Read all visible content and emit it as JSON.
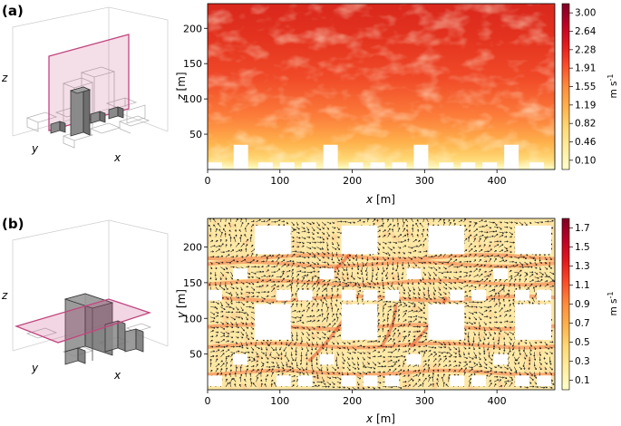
{
  "colors": {
    "cmap": [
      "#ffffcc",
      "#ffeda0",
      "#fed976",
      "#feb24c",
      "#fd8d3c",
      "#fc4e2a",
      "#e31a1c",
      "#bd0026",
      "#800026"
    ],
    "plane": "#c2467f",
    "building_fill": "#7f7f7f",
    "building_edge": "#444444"
  },
  "chart_data": [
    {
      "panel_label": "(a)",
      "type": "heatmap",
      "xlabel_var": "x",
      "xlabel_unit": "[m]",
      "ylabel_var": "z",
      "ylabel_unit": "[m]",
      "xlim": [
        0,
        480
      ],
      "ylim": [
        0,
        235
      ],
      "xticks": [
        0,
        100,
        200,
        300,
        400
      ],
      "yticks": [
        50,
        100,
        150,
        200
      ],
      "colorbar": {
        "label": "m s",
        "label_exp": "-1",
        "ticks": [
          "0.10",
          "0.46",
          "0.82",
          "1.19",
          "1.55",
          "1.91",
          "2.28",
          "2.64",
          "3.00"
        ],
        "range": [
          0.1,
          3.0
        ]
      },
      "buildings": [
        {
          "x": [
            0,
            20
          ],
          "h": 10
        },
        {
          "x": [
            36,
            56
          ],
          "h": 35
        },
        {
          "x": [
            70,
            90
          ],
          "h": 10
        },
        {
          "x": [
            100,
            120
          ],
          "h": 10
        },
        {
          "x": [
            130,
            150
          ],
          "h": 10
        },
        {
          "x": [
            160,
            180
          ],
          "h": 35
        },
        {
          "x": [
            195,
            215
          ],
          "h": 10
        },
        {
          "x": [
            225,
            245
          ],
          "h": 10
        },
        {
          "x": [
            255,
            275
          ],
          "h": 10
        },
        {
          "x": [
            285,
            305
          ],
          "h": 35
        },
        {
          "x": [
            320,
            340
          ],
          "h": 10
        },
        {
          "x": [
            350,
            370
          ],
          "h": 10
        },
        {
          "x": [
            380,
            400
          ],
          "h": 10
        },
        {
          "x": [
            410,
            430
          ],
          "h": 35
        },
        {
          "x": [
            445,
            465
          ],
          "h": 10
        }
      ]
    },
    {
      "panel_label": "(b)",
      "type": "heatmap",
      "xlabel_var": "x",
      "xlabel_unit": "[m]",
      "ylabel_var": "y",
      "ylabel_unit": "[m]",
      "xlim": [
        0,
        480
      ],
      "ylim": [
        0,
        240
      ],
      "xticks": [
        0,
        100,
        200,
        300,
        400
      ],
      "yticks": [
        50,
        100,
        150,
        200
      ],
      "colorbar": {
        "label": "m s",
        "label_exp": "-1",
        "ticks": [
          "0.1",
          "0.3",
          "0.5",
          "0.7",
          "0.9",
          "1.1",
          "1.3",
          "1.5",
          "1.7"
        ],
        "range": [
          0.1,
          1.7
        ]
      },
      "buildings": [
        {
          "x": [
            65,
            115
          ],
          "y": [
            190,
            230
          ]
        },
        {
          "x": [
            185,
            235
          ],
          "y": [
            190,
            230
          ]
        },
        {
          "x": [
            305,
            355
          ],
          "y": [
            190,
            230
          ]
        },
        {
          "x": [
            425,
            475
          ],
          "y": [
            190,
            230
          ]
        },
        {
          "x": [
            65,
            115
          ],
          "y": [
            70,
            120
          ]
        },
        {
          "x": [
            185,
            235
          ],
          "y": [
            70,
            120
          ]
        },
        {
          "x": [
            305,
            355
          ],
          "y": [
            70,
            120
          ]
        },
        {
          "x": [
            425,
            475
          ],
          "y": [
            70,
            120
          ]
        },
        {
          "x": [
            35,
            55
          ],
          "y": [
            155,
            170
          ]
        },
        {
          "x": [
            155,
            175
          ],
          "y": [
            155,
            170
          ]
        },
        {
          "x": [
            275,
            295
          ],
          "y": [
            155,
            170
          ]
        },
        {
          "x": [
            395,
            415
          ],
          "y": [
            155,
            170
          ]
        },
        {
          "x": [
            35,
            55
          ],
          "y": [
            35,
            50
          ]
        },
        {
          "x": [
            155,
            175
          ],
          "y": [
            35,
            50
          ]
        },
        {
          "x": [
            275,
            295
          ],
          "y": [
            35,
            50
          ]
        },
        {
          "x": [
            395,
            415
          ],
          "y": [
            35,
            50
          ]
        },
        {
          "x": [
            0,
            20
          ],
          "y": [
            125,
            140
          ]
        },
        {
          "x": [
            95,
            115
          ],
          "y": [
            125,
            140
          ]
        },
        {
          "x": [
            125,
            145
          ],
          "y": [
            125,
            140
          ]
        },
        {
          "x": [
            185,
            205
          ],
          "y": [
            125,
            140
          ]
        },
        {
          "x": [
            215,
            235
          ],
          "y": [
            125,
            140
          ]
        },
        {
          "x": [
            245,
            265
          ],
          "y": [
            125,
            140
          ]
        },
        {
          "x": [
            335,
            355
          ],
          "y": [
            125,
            140
          ]
        },
        {
          "x": [
            365,
            385
          ],
          "y": [
            125,
            140
          ]
        },
        {
          "x": [
            425,
            445
          ],
          "y": [
            125,
            140
          ]
        },
        {
          "x": [
            455,
            475
          ],
          "y": [
            125,
            140
          ]
        },
        {
          "x": [
            0,
            20
          ],
          "y": [
            5,
            20
          ]
        },
        {
          "x": [
            95,
            115
          ],
          "y": [
            5,
            20
          ]
        },
        {
          "x": [
            125,
            145
          ],
          "y": [
            5,
            20
          ]
        },
        {
          "x": [
            185,
            205
          ],
          "y": [
            5,
            20
          ]
        },
        {
          "x": [
            215,
            235
          ],
          "y": [
            5,
            20
          ]
        },
        {
          "x": [
            245,
            265
          ],
          "y": [
            5,
            20
          ]
        },
        {
          "x": [
            335,
            355
          ],
          "y": [
            5,
            20
          ]
        },
        {
          "x": [
            365,
            385
          ],
          "y": [
            5,
            20
          ]
        },
        {
          "x": [
            425,
            445
          ],
          "y": [
            5,
            20
          ]
        },
        {
          "x": [
            455,
            475
          ],
          "y": [
            5,
            20
          ]
        }
      ]
    }
  ],
  "schematics": [
    {
      "panel_label": "(a)",
      "axis_x": "x",
      "axis_y": "y",
      "axis_z": "z",
      "plane": "vertical"
    },
    {
      "panel_label": "(b)",
      "axis_x": "x",
      "axis_y": "y",
      "axis_z": "z",
      "plane": "horizontal"
    }
  ]
}
